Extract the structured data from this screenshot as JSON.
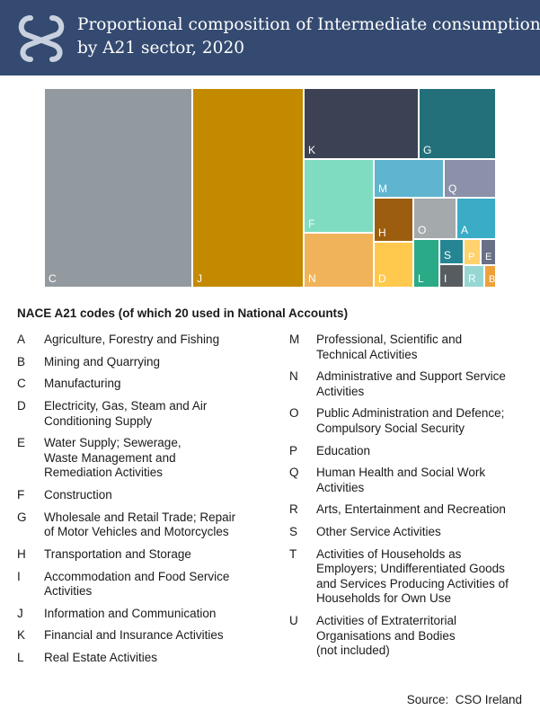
{
  "header": {
    "title_lines": [
      "Proportional composition of Intermediate consumption",
      "by A21 sector, 2020"
    ],
    "background": "#344a70"
  },
  "chart_data": {
    "type": "treemap",
    "title": "Proportional composition of Intermediate consumption by A21 sector, 2020",
    "items": [
      {
        "label": "C",
        "value": 30.0,
        "color": "#939a9f"
      },
      {
        "label": "J",
        "value": 22.0,
        "color": "#c38a00"
      },
      {
        "label": "K",
        "value": 8.2,
        "color": "#3c4253"
      },
      {
        "label": "G",
        "value": 8.0,
        "color": "#23707a"
      },
      {
        "label": "F",
        "value": 4.5,
        "color": "#7fdcc0"
      },
      {
        "label": "N",
        "value": 4.3,
        "color": "#f1b359"
      },
      {
        "label": "M",
        "value": 2.6,
        "color": "#5fb4cf"
      },
      {
        "label": "Q",
        "value": 2.0,
        "color": "#8a91a8"
      },
      {
        "label": "H",
        "value": 1.5,
        "color": "#9c5e0e"
      },
      {
        "label": "D",
        "value": 1.7,
        "color": "#ffc94e"
      },
      {
        "label": "O",
        "value": 1.5,
        "color": "#a4a9ac"
      },
      {
        "label": "A",
        "value": 1.6,
        "color": "#3aacc6"
      },
      {
        "label": "L",
        "value": 1.4,
        "color": "#2aaa87"
      },
      {
        "label": "S",
        "value": 0.8,
        "color": "#268593"
      },
      {
        "label": "P",
        "value": 0.6,
        "color": "#ffd26e"
      },
      {
        "label": "E",
        "value": 0.6,
        "color": "#686f86"
      },
      {
        "label": "I",
        "value": 0.6,
        "color": "#575c61"
      },
      {
        "label": "R",
        "value": 0.5,
        "color": "#96d7d3"
      },
      {
        "label": "B",
        "value": 0.3,
        "color": "#eea13a"
      }
    ]
  },
  "codes": {
    "heading": "NACE A21 codes (of which 20 used in National Accounts)",
    "left": [
      {
        "code": "A",
        "desc": "Agriculture, Forestry and Fishing"
      },
      {
        "code": "B",
        "desc": "Mining and Quarrying"
      },
      {
        "code": "C",
        "desc": "Manufacturing"
      },
      {
        "code": "D",
        "desc": "Electricity, Gas, Steam and Air\nConditioning Supply"
      },
      {
        "code": "E",
        "desc": "Water Supply; Sewerage,\nWaste Management and\nRemediation Activities"
      },
      {
        "code": "F",
        "desc": "Construction"
      },
      {
        "code": "G",
        "desc": "Wholesale and Retail Trade; Repair\nof Motor Vehicles and Motorcycles"
      },
      {
        "code": "H",
        "desc": "Transportation and Storage"
      },
      {
        "code": "I",
        "desc": "Accommodation and Food Service\nActivities"
      },
      {
        "code": "J",
        "desc": "Information and Communication"
      },
      {
        "code": "K",
        "desc": "Financial and Insurance Activities"
      },
      {
        "code": "L",
        "desc": "Real Estate Activities"
      }
    ],
    "right": [
      {
        "code": "M",
        "desc": "Professional, Scientific and\nTechnical Activities"
      },
      {
        "code": "N",
        "desc": "Administrative and Support Service\nActivities"
      },
      {
        "code": "O",
        "desc": "Public Administration and Defence;\nCompulsory Social Security"
      },
      {
        "code": "P",
        "desc": "Education"
      },
      {
        "code": "Q",
        "desc": "Human Health and Social Work\nActivities"
      },
      {
        "code": "R",
        "desc": "Arts, Entertainment and Recreation"
      },
      {
        "code": "S",
        "desc": "Other Service Activities"
      },
      {
        "code": "T",
        "desc": "Activities of Households as\nEmployers; Undifferentiated Goods\nand Services Producing Activities of\nHouseholds for Own Use"
      },
      {
        "code": "U",
        "desc": "Activities of Extraterritorial\nOrganisations and Bodies\n(not included)"
      }
    ]
  },
  "source": "Source:  CSO Ireland"
}
